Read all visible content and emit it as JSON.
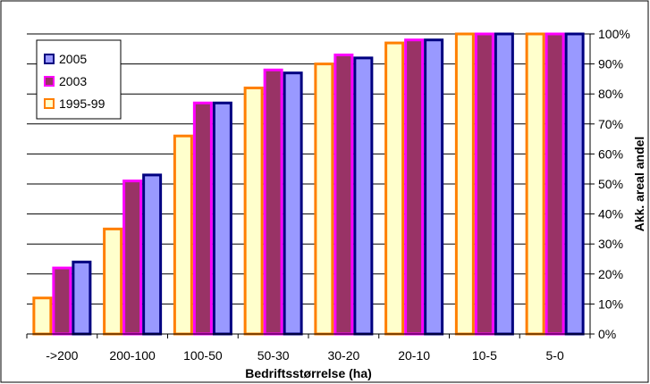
{
  "chart_data": {
    "type": "bar",
    "categories": [
      "->200",
      "200-100",
      "100-50",
      "50-30",
      "30-20",
      "20-10",
      "10-5",
      "5-0"
    ],
    "series": [
      {
        "name": "1995-99",
        "values": [
          12,
          35,
          66,
          82,
          90,
          97,
          100,
          100
        ],
        "fill": "#ffffcc",
        "stroke": "#ff7f00"
      },
      {
        "name": "2003",
        "values": [
          22,
          51,
          77,
          88,
          93,
          98,
          100,
          100
        ],
        "fill": "#993366",
        "stroke": "#ff00ff"
      },
      {
        "name": "2005",
        "values": [
          24,
          53,
          77,
          87,
          92,
          98,
          100,
          100
        ],
        "fill": "#9999ff",
        "stroke": "#000080"
      }
    ],
    "legend_order": [
      "2005",
      "2003",
      "1995-99"
    ],
    "xlabel": "Bedriftsstørrelse (ha)",
    "ylabel": "Akk. areal andel",
    "ylim": [
      0,
      100
    ],
    "yticks": [
      "0%",
      "10%",
      "20%",
      "30%",
      "40%",
      "50%",
      "60%",
      "70%",
      "80%",
      "90%",
      "100%"
    ],
    "grid": true,
    "legend_position": "top-left"
  }
}
